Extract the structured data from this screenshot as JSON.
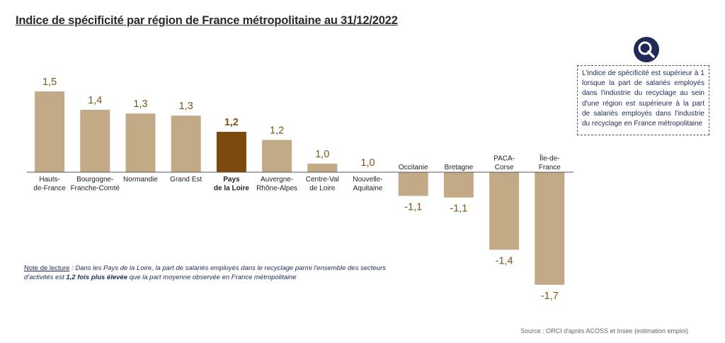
{
  "title": "Indice de spécificité par région de France métropolitaine au 31/12/2022",
  "info_text": "L'indice de spécificité est supérieur à 1 lorsque la part de salariés employés dans l'industrie du recyclage au sein d'une région est supérieure à la part de salariés employés dans l'industrie du recyclage en France métropolitaine",
  "note": {
    "label": "Note de lecture",
    "text_before": " : Dans les Pays de la Loire, la part de salariés employés dans le recyclage parmi l'ensemble des secteurs d'activités est ",
    "bold": "1,2 fois plus élevée",
    "text_after": " que la part moyenne observée en France métropolitaine"
  },
  "source": "Source : ORCI d'après ACOSS et Insee (estimation emploi)",
  "icons": {
    "info": "magnifier-icon"
  },
  "colors": {
    "bar": "#c2aa87",
    "highlight": "#7b4a0c",
    "value_label": "#7b5418",
    "axis": "#555555"
  },
  "chart_data": {
    "type": "bar",
    "categories": [
      [
        "Hauts-",
        "de-France"
      ],
      [
        "Bourgogne-",
        "Franche-Comté"
      ],
      [
        "Normandie"
      ],
      [
        "Grand Est"
      ],
      [
        "Pays",
        "de la Loire"
      ],
      [
        "Auvergne-",
        "Rhône-Alpes"
      ],
      [
        "Centre-Val",
        "de Loire"
      ],
      [
        "Nouvelle-",
        "Aquitaine"
      ],
      [
        "Occitanie"
      ],
      [
        "Bretagne"
      ],
      [
        "PACA-",
        "Corse"
      ],
      [
        "Île-de-",
        "France"
      ]
    ],
    "values": [
      1.5,
      1.4,
      1.3,
      1.3,
      1.2,
      1.2,
      1.0,
      1.0,
      -1.1,
      -1.1,
      -1.4,
      -1.7
    ],
    "value_labels": [
      "1,5",
      "1,4",
      "1,3",
      "1,3",
      "1,2",
      "1,2",
      "1,0",
      "1,0",
      "-1,1",
      "-1,1",
      "-1,4",
      "-1,7"
    ],
    "highlighted_index": 4,
    "bar_heights": [
      1.5,
      1.16,
      1.09,
      1.05,
      0.75,
      0.6,
      0.16,
      0.0,
      0.44,
      0.47,
      1.44,
      2.09
    ],
    "bar_heights_note": "visual bar lengths as drawn (not proportional to labels)",
    "xlabel": "",
    "ylabel": ""
  }
}
